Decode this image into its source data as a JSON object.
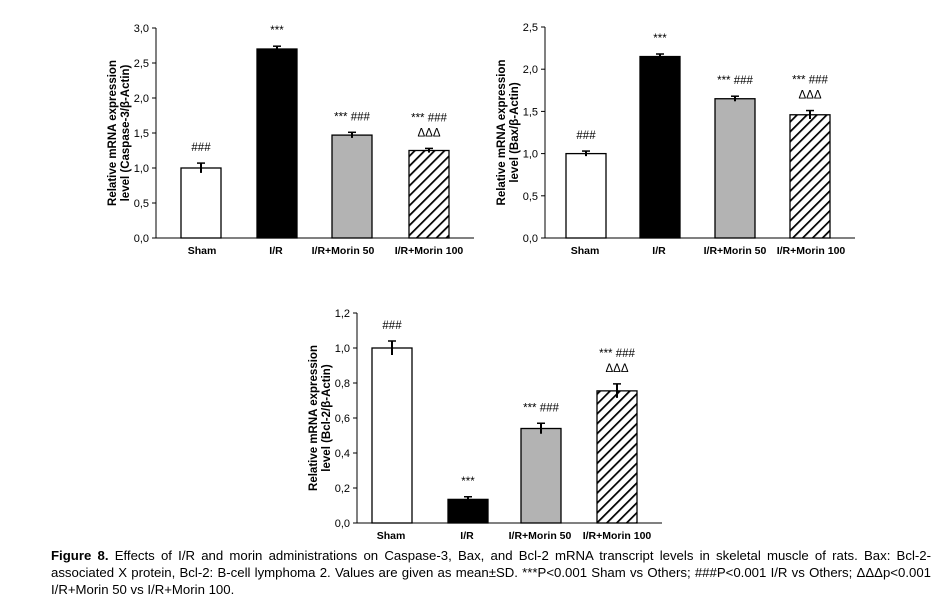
{
  "chart_data": [
    {
      "type": "bar",
      "ylabel": [
        "Relative mRNA expression",
        "level (Caspase-3/β-Actin)"
      ],
      "ylim": [
        0,
        3.0
      ],
      "yticks": [
        "0,0",
        "0,5",
        "1,0",
        "1,5",
        "2,0",
        "2,5",
        "3,0"
      ],
      "categories": [
        "Sham",
        "I/R",
        "I/R+Morin 50",
        "I/R+Morin 100"
      ],
      "values": [
        1.0,
        2.7,
        1.47,
        1.25
      ],
      "errors": [
        0.07,
        0.04,
        0.04,
        0.03
      ],
      "fills": [
        "white",
        "black",
        "gray",
        "hatch"
      ],
      "annotations": [
        [
          "###"
        ],
        [
          "***"
        ],
        [
          "*** ###"
        ],
        [
          "*** ###",
          "ΔΔΔ"
        ]
      ]
    },
    {
      "type": "bar",
      "ylabel": [
        "Relative mRNA expression",
        "level (Bax/β-Actin)"
      ],
      "ylim": [
        0,
        2.5
      ],
      "yticks": [
        "0,0",
        "0,5",
        "1,0",
        "1,5",
        "2,0",
        "2,5"
      ],
      "categories": [
        "Sham",
        "I/R",
        "I/R+Morin 50",
        "I/R+Morin 100"
      ],
      "values": [
        1.0,
        2.15,
        1.65,
        1.46
      ],
      "errors": [
        0.03,
        0.03,
        0.03,
        0.05
      ],
      "fills": [
        "white",
        "black",
        "gray",
        "hatch"
      ],
      "annotations": [
        [
          "###"
        ],
        [
          "***"
        ],
        [
          "*** ###"
        ],
        [
          "*** ###",
          "ΔΔΔ"
        ]
      ]
    },
    {
      "type": "bar",
      "ylabel": [
        "Relative mRNA expression",
        "level (Bcl-2/β-Actin)"
      ],
      "ylim": [
        0,
        1.2
      ],
      "yticks": [
        "0,0",
        "0,2",
        "0,4",
        "0,6",
        "0,8",
        "1,0",
        "1,2"
      ],
      "categories": [
        "Sham",
        "I/R",
        "I/R+Morin 50",
        "I/R+Morin 100"
      ],
      "values": [
        1.0,
        0.135,
        0.54,
        0.755
      ],
      "errors": [
        0.04,
        0.015,
        0.03,
        0.04
      ],
      "fills": [
        "white",
        "black",
        "gray",
        "hatch"
      ],
      "annotations": [
        [
          "###"
        ],
        [
          "***"
        ],
        [
          "*** ###"
        ],
        [
          "*** ###",
          "ΔΔΔ"
        ]
      ]
    }
  ],
  "caption": {
    "label": "Figure 8.",
    "text": " Effects of I/R and morin administrations on Caspase-3, Bax, and Bcl-2 mRNA transcript levels in skeletal muscle of rats. Bax: Bcl-2-associated X protein, Bcl-2: B-cell lymphoma 2. Values are given as mean±SD. ***P<0.001 Sham vs Others; ###P<0.001 I/R vs Others; ΔΔΔp<0.001 I/R+Morin 50 vs I/R+Morin 100."
  },
  "colors": {
    "gray": "#b3b3b3",
    "black": "#000000",
    "white": "#ffffff"
  }
}
